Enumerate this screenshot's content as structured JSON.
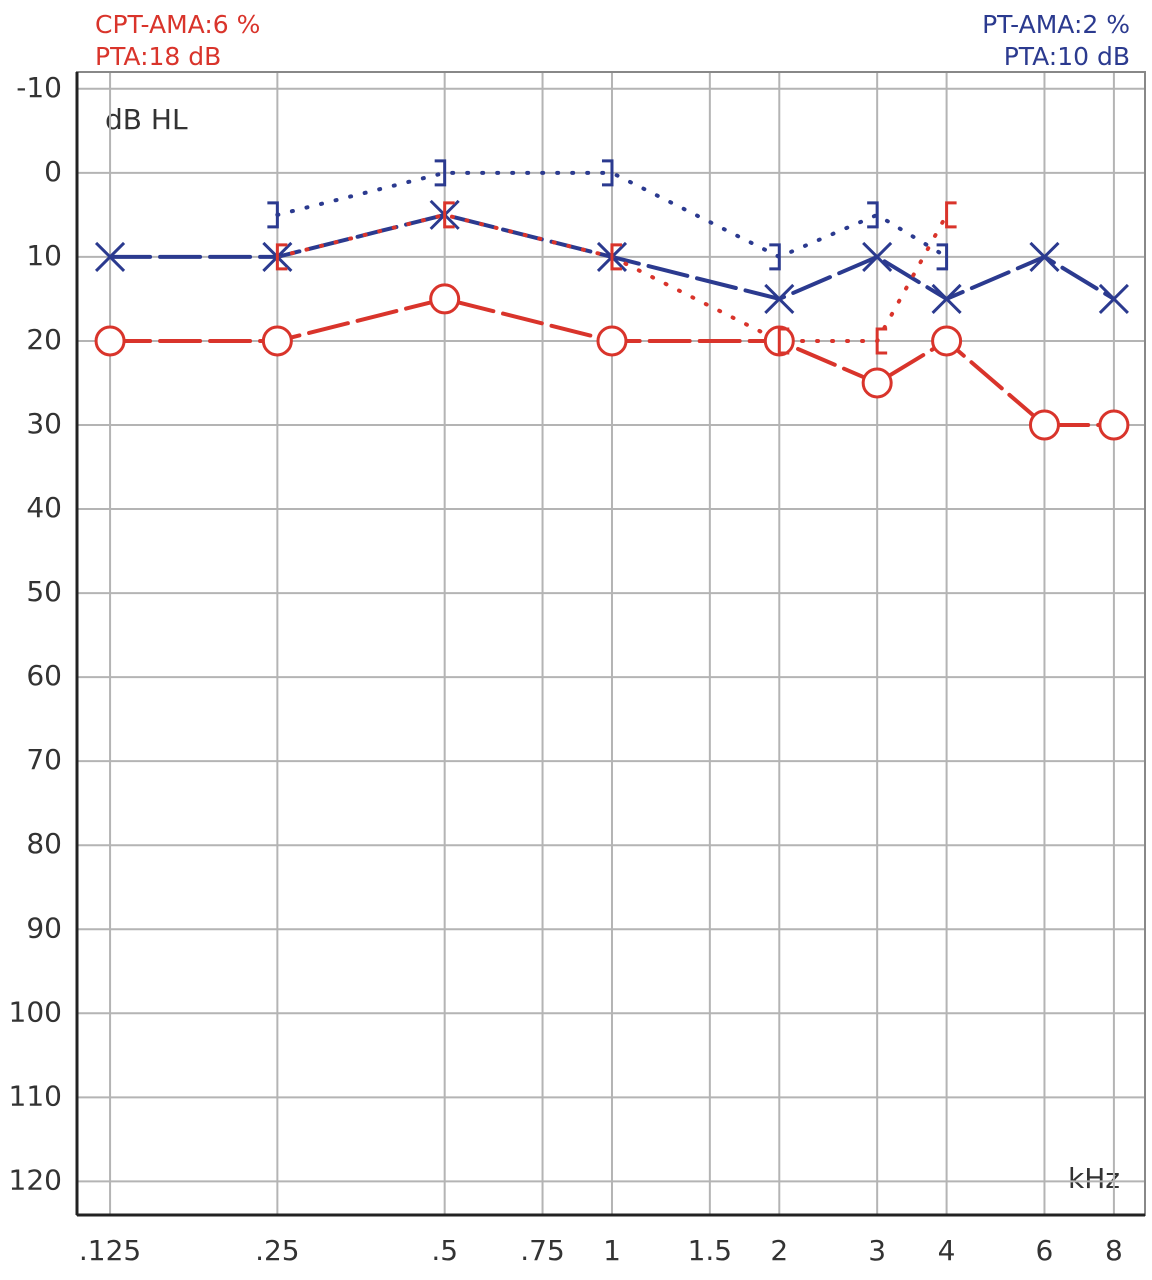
{
  "chart_data": {
    "type": "line",
    "annotations": [
      {
        "text": "CPT-AMA:6 %",
        "color": "#d9342b",
        "corner": "top-left"
      },
      {
        "text": "PTA:18 dB",
        "color": "#d9342b",
        "corner": "top-left"
      },
      {
        "text": "PT-AMA:2 %",
        "color": "#2b3a8f",
        "corner": "top-right"
      },
      {
        "text": "PTA:10 dB",
        "color": "#2b3a8f",
        "corner": "top-right"
      }
    ],
    "y_label": "dB HL",
    "x_label": "kHz",
    "x": [
      0.125,
      0.25,
      0.5,
      1,
      2,
      3,
      4,
      6,
      8
    ],
    "series": [
      {
        "color": "#2b3a8f",
        "marker": "x",
        "line": "solid",
        "values": [
          10,
          10,
          5,
          10,
          15,
          10,
          15,
          10,
          15
        ]
      },
      {
        "color": "#d9342b",
        "marker": "o",
        "line": "solid",
        "values": [
          20,
          20,
          15,
          20,
          20,
          25,
          20,
          30,
          30
        ]
      },
      {
        "color": "#2b3a8f",
        "marker": "]",
        "line": "dotted",
        "values": [
          null,
          5,
          0,
          0,
          10,
          5,
          10,
          null,
          null
        ]
      },
      {
        "color": "#d9342b",
        "marker": "[",
        "line": "dotted",
        "values": [
          null,
          10,
          5,
          10,
          20,
          20,
          5,
          null,
          null
        ]
      }
    ],
    "x_log": true,
    "y_reversed": true,
    "grid": true,
    "xlim": [
      0.109,
      9.1
    ],
    "xticks": [
      {
        "value": 0.125,
        "label": ".125"
      },
      {
        "value": 0.25,
        "label": ".25"
      },
      {
        "value": 0.5,
        "label": ".5"
      },
      {
        "value": 0.75,
        "label": ".75"
      },
      1,
      1.5,
      2,
      3,
      4,
      6,
      8
    ],
    "ylim": [
      -12,
      124
    ],
    "yticks": [
      -10,
      0,
      10,
      20,
      30,
      40,
      50,
      60,
      70,
      80,
      90,
      100,
      110,
      120
    ]
  }
}
